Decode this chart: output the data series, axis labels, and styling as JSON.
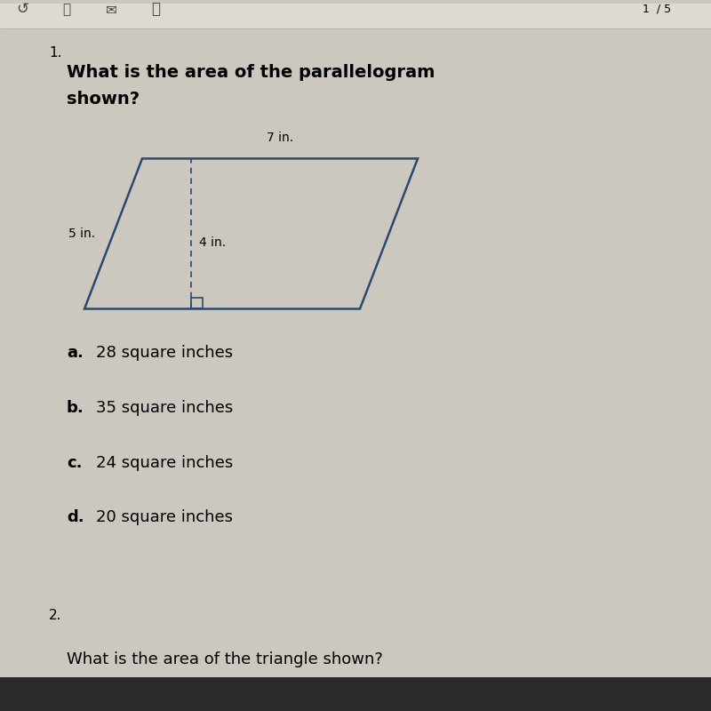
{
  "background_color": "#ccc8c0",
  "toolbar_color": "#dedad2",
  "page_bg": "#eeeae2",
  "question_number": "1.",
  "question_text_line1": "What is the area of the parallelogram",
  "question_text_line2": "shown?",
  "parallelogram": {
    "base_label": "7 in.",
    "side_label": "5 in.",
    "height_label": "4 in.",
    "outline_color": "#2a4a6b",
    "line_width": 1.8
  },
  "choices": [
    {
      "letter": "a.",
      "text": "28 square inches"
    },
    {
      "letter": "b.",
      "text": "35 square inches"
    },
    {
      "letter": "c.",
      "text": "24 square inches"
    },
    {
      "letter": "d.",
      "text": "20 square inches"
    }
  ],
  "footer_number": "2.",
  "footer_text": "What is the area of the triangle shown?",
  "font_size_question": 14,
  "font_size_choices": 13,
  "font_size_labels": 10
}
